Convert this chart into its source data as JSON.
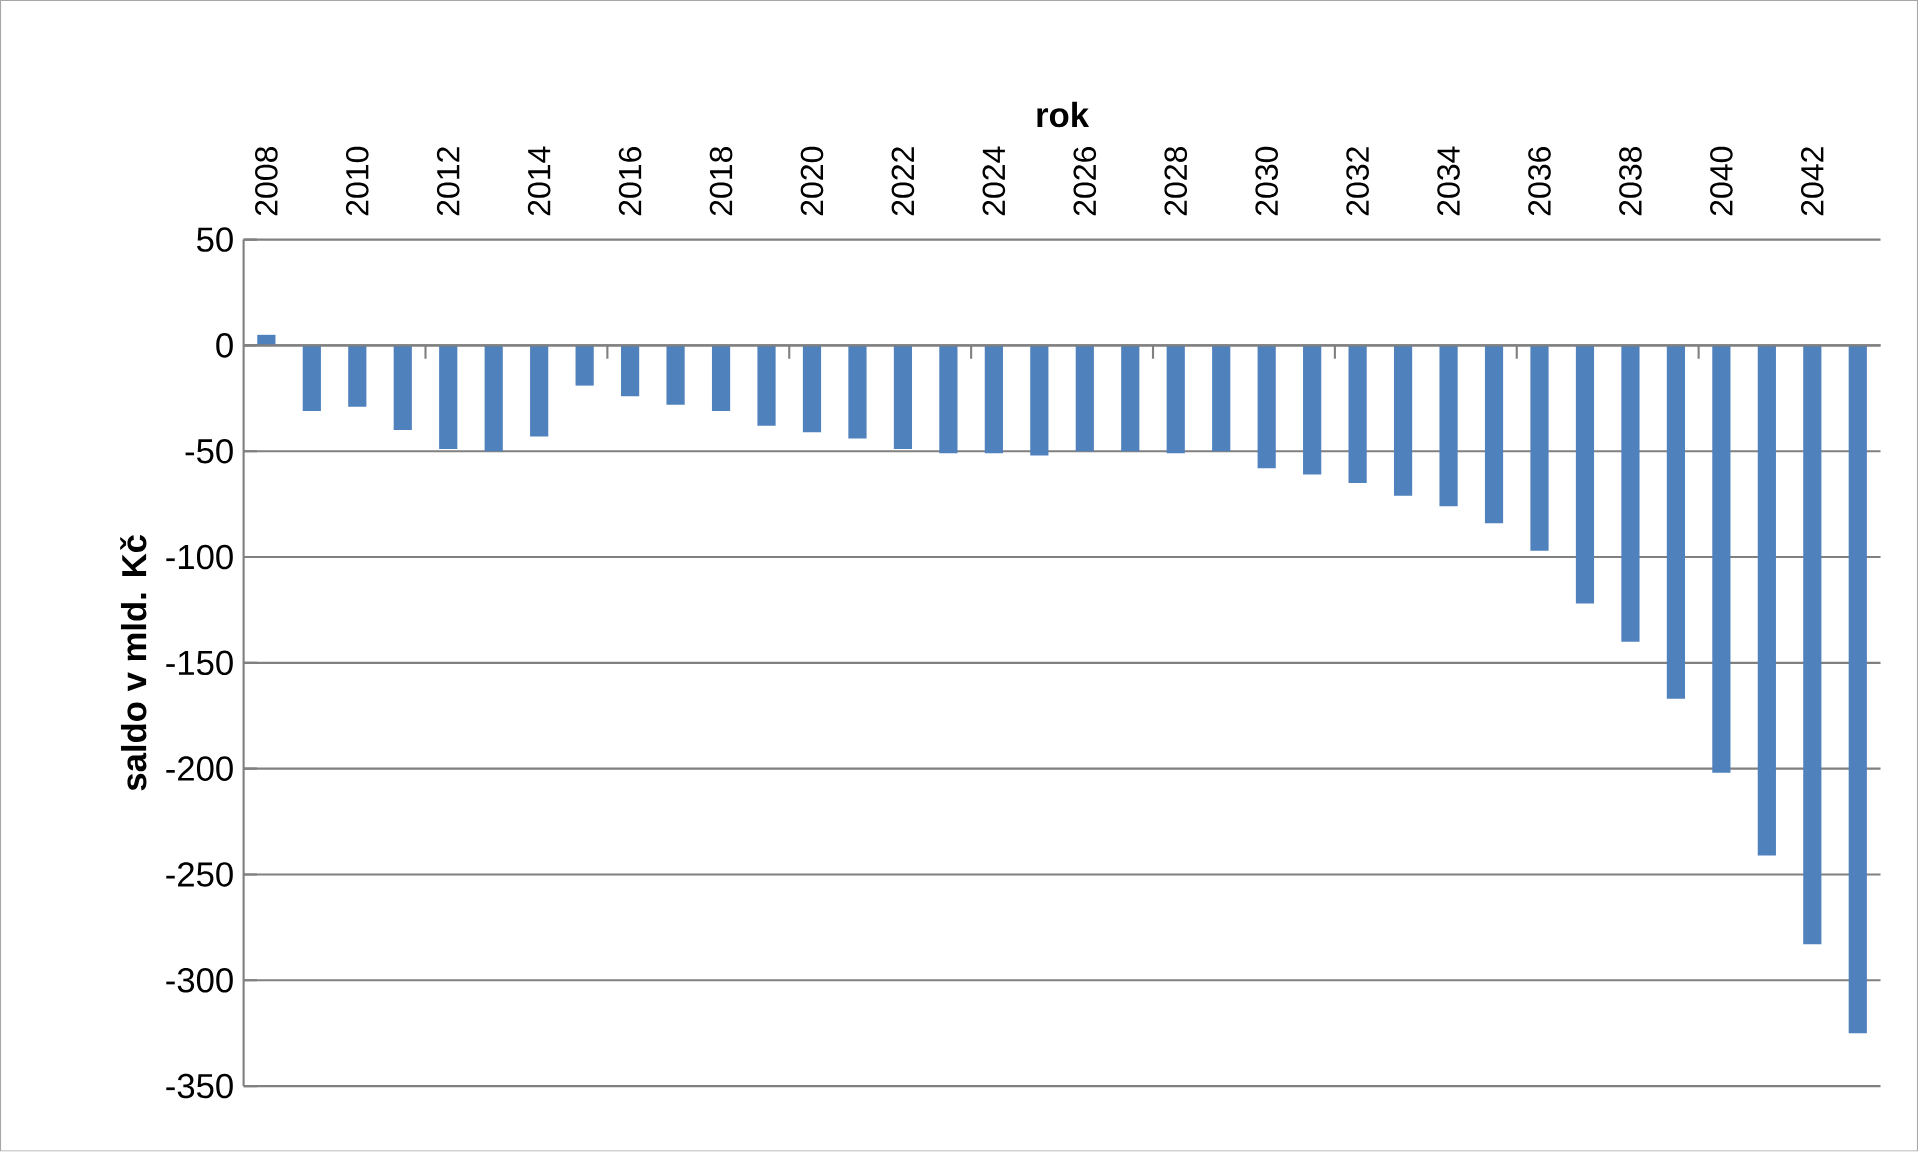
{
  "chart_data": {
    "type": "bar",
    "xlabel": "rok",
    "ylabel": "saldo v mld. Kč",
    "color": "#4f81bd",
    "categories": [
      "2008",
      null,
      "2010",
      null,
      "2012",
      null,
      "2014",
      null,
      "2016",
      null,
      "2018",
      null,
      "2020",
      null,
      "2022",
      null,
      "2024",
      null,
      "2026",
      null,
      "2028",
      null,
      "2030",
      null,
      "2032",
      null,
      "2034",
      null,
      "2036",
      null,
      "2038",
      null,
      "2040",
      null,
      "2042",
      null
    ],
    "values": [
      5,
      -31,
      -29,
      -40,
      -49,
      -50,
      -43,
      -19,
      -24,
      -28,
      -31,
      -38,
      -41,
      -44,
      -49,
      -51,
      -51,
      -52,
      -50,
      -50,
      -51,
      -50,
      -58,
      -61,
      -65,
      -71,
      -76,
      -84,
      -97,
      -122,
      -140,
      -167,
      -202,
      -241,
      -283,
      -325
    ],
    "ylim": [
      -350,
      50
    ],
    "yticks": [
      -350,
      -300,
      -250,
      -200,
      -150,
      -100,
      -50,
      0,
      50
    ],
    "grid": "y"
  }
}
